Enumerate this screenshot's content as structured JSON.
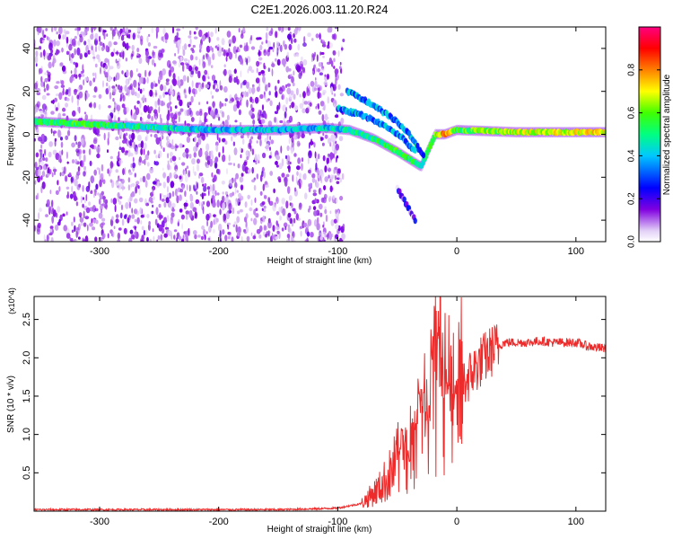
{
  "title": "C2E1.2026.003.11.20.R24",
  "chart_data": [
    {
      "type": "heatmap",
      "xlabel": "Height of straight line (km)",
      "ylabel": "Frequency (Hz)",
      "xlim": [
        -355,
        125
      ],
      "ylim": [
        -50,
        50
      ],
      "xticks": [
        {
          "value": -300,
          "label": "-300"
        },
        {
          "value": -200,
          "label": "-200"
        },
        {
          "value": -100,
          "label": "-100"
        },
        {
          "value": 0,
          "label": "0"
        },
        {
          "value": 100,
          "label": "100"
        }
      ],
      "yticks": [
        {
          "value": 40,
          "label": "40"
        },
        {
          "value": 20,
          "label": "20"
        },
        {
          "value": 0,
          "label": "0"
        },
        {
          "value": -20,
          "label": "-20"
        },
        {
          "value": -40,
          "label": "-40"
        }
      ],
      "colorbar": {
        "label": "Normalized spectral amplitude",
        "range": [
          0,
          1
        ],
        "ticks": [
          {
            "value": 0.0,
            "label": "0.0"
          },
          {
            "value": 0.2,
            "label": "0.2"
          },
          {
            "value": 0.4,
            "label": "0.4"
          },
          {
            "value": 0.6,
            "label": "0.6"
          },
          {
            "value": 0.8,
            "label": "0.8"
          }
        ],
        "colors": [
          "#ffffff",
          "#d8c4f4",
          "#8000e0",
          "#0000ff",
          "#00c0ff",
          "#00ff80",
          "#40ff00",
          "#ffff00",
          "#ff8000",
          "#ff0000",
          "#ff0080"
        ]
      },
      "main_line": [
        {
          "x": -355,
          "y": 6,
          "amp": 0.5
        },
        {
          "x": -320,
          "y": 5,
          "amp": 0.55
        },
        {
          "x": -280,
          "y": 4,
          "amp": 0.5
        },
        {
          "x": -250,
          "y": 3,
          "amp": 0.45
        },
        {
          "x": -200,
          "y": 2,
          "amp": 0.4
        },
        {
          "x": -150,
          "y": 2,
          "amp": 0.4
        },
        {
          "x": -110,
          "y": 3,
          "amp": 0.4
        },
        {
          "x": -90,
          "y": 2,
          "amp": 0.45
        },
        {
          "x": -70,
          "y": -2,
          "amp": 0.5
        },
        {
          "x": -50,
          "y": -8,
          "amp": 0.55
        },
        {
          "x": -30,
          "y": -15,
          "amp": 0.5
        },
        {
          "x": -18,
          "y": 0,
          "amp": 0.6
        },
        {
          "x": -10,
          "y": 0,
          "amp": 0.8
        },
        {
          "x": 0,
          "y": 2,
          "amp": 0.55
        },
        {
          "x": 50,
          "y": 1,
          "amp": 0.65
        },
        {
          "x": 100,
          "y": 1,
          "amp": 0.7
        },
        {
          "x": 125,
          "y": 1,
          "amp": 0.7
        }
      ],
      "branches": [
        [
          {
            "x": -100,
            "y": 12
          },
          {
            "x": -80,
            "y": 9
          },
          {
            "x": -60,
            "y": 4
          },
          {
            "x": -45,
            "y": -2
          },
          {
            "x": -35,
            "y": -8
          }
        ],
        [
          {
            "x": -92,
            "y": 20
          },
          {
            "x": -75,
            "y": 15
          },
          {
            "x": -55,
            "y": 8
          },
          {
            "x": -40,
            "y": 0
          },
          {
            "x": -28,
            "y": -10
          }
        ],
        [
          {
            "x": -50,
            "y": -25
          },
          {
            "x": -40,
            "y": -35
          },
          {
            "x": -35,
            "y": -40
          }
        ]
      ]
    },
    {
      "type": "line",
      "xlabel": "Height of straight line (km)",
      "ylabel": "SNR (10 * v/v)",
      "y_multiplier": "(x10^4)",
      "xlim": [
        -355,
        125
      ],
      "ylim": [
        0,
        2.8
      ],
      "xticks": [
        {
          "value": -300,
          "label": "-300"
        },
        {
          "value": -200,
          "label": "-200"
        },
        {
          "value": -100,
          "label": "-100"
        },
        {
          "value": 0,
          "label": "0"
        },
        {
          "value": 100,
          "label": "100"
        }
      ],
      "yticks": [
        {
          "value": 0.5,
          "label": "0.5"
        },
        {
          "value": 1.0,
          "label": "1.0"
        },
        {
          "value": 1.5,
          "label": "1.5"
        },
        {
          "value": 2.0,
          "label": "2.0"
        },
        {
          "value": 2.5,
          "label": "2.5"
        }
      ],
      "series": [
        {
          "name": "SNR",
          "color": "#ee2b2b",
          "x": [
            -355,
            -300,
            -250,
            -200,
            -150,
            -120,
            -100,
            -80,
            -65,
            -55,
            -45,
            -35,
            -28,
            -20,
            -16,
            -12,
            -5,
            0,
            10,
            20,
            30,
            40,
            50,
            60,
            70,
            80,
            90,
            100,
            110,
            125
          ],
          "y": [
            0.02,
            0.02,
            0.02,
            0.02,
            0.02,
            0.03,
            0.04,
            0.1,
            0.3,
            0.5,
            0.8,
            1.0,
            1.2,
            1.5,
            1.9,
            1.5,
            1.45,
            1.55,
            1.75,
            1.95,
            2.1,
            2.2,
            2.2,
            2.2,
            2.22,
            2.2,
            2.2,
            2.2,
            2.15,
            2.12
          ],
          "spikes": [
            {
              "x": -48,
              "y": 0.9
            },
            {
              "x": -44,
              "y": 1.1
            },
            {
              "x": -40,
              "y": 0.8
            },
            {
              "x": -35,
              "y": 1.3
            },
            {
              "x": -30,
              "y": 1.6
            },
            {
              "x": -24,
              "y": 1.4
            },
            {
              "x": -20,
              "y": 2.3
            },
            {
              "x": -17,
              "y": 2.8
            },
            {
              "x": -14,
              "y": 1.8
            },
            {
              "x": -8,
              "y": 1.9
            },
            {
              "x": 0,
              "y": 1.8
            }
          ]
        }
      ]
    }
  ]
}
